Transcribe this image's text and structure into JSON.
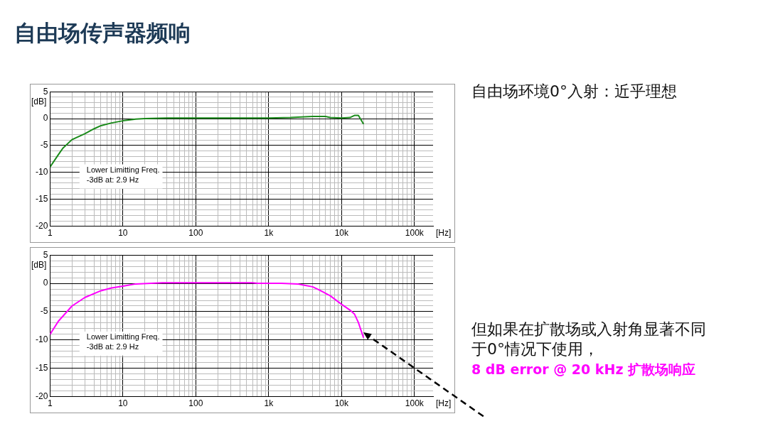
{
  "chart_data": [
    {
      "type": "line",
      "title": "自由场传声器频响",
      "xlabel": "[Hz]",
      "ylabel": "[dB]",
      "log": "x",
      "grid": true,
      "marker": "none",
      "line_style": "solid",
      "annotations": [
        "Lower Limitting Freq.\n-3dB at: 2.9 Hz",
        "自由场环境0°入射：近乎理想"
      ],
      "xlim": [
        1,
        180000
      ],
      "xticks": [
        1,
        {
          "value": 2,
          "label": null
        },
        {
          "value": 3,
          "label": null
        },
        {
          "value": 4,
          "label": null
        },
        {
          "value": 5,
          "label": null
        },
        {
          "value": 6,
          "label": null
        },
        {
          "value": 7,
          "label": null
        },
        {
          "value": 8,
          "label": null
        },
        {
          "value": 9,
          "label": null
        },
        10,
        {
          "value": 20,
          "label": null
        },
        {
          "value": 30,
          "label": null
        },
        {
          "value": 40,
          "label": null
        },
        {
          "value": 50,
          "label": null
        },
        {
          "value": 60,
          "label": null
        },
        {
          "value": 70,
          "label": null
        },
        {
          "value": 80,
          "label": null
        },
        {
          "value": 90,
          "label": null
        },
        100,
        {
          "value": 200,
          "label": null
        },
        {
          "value": 300,
          "label": null
        },
        {
          "value": 400,
          "label": null
        },
        {
          "value": 500,
          "label": null
        },
        {
          "value": 600,
          "label": null
        },
        {
          "value": 700,
          "label": null
        },
        {
          "value": 800,
          "label": null
        },
        {
          "value": 900,
          "label": null
        },
        {
          "value": 1000,
          "label": "1k"
        },
        {
          "value": 2000,
          "label": null
        },
        {
          "value": 3000,
          "label": null
        },
        {
          "value": 4000,
          "label": null
        },
        {
          "value": 5000,
          "label": null
        },
        {
          "value": 6000,
          "label": null
        },
        {
          "value": 7000,
          "label": null
        },
        {
          "value": 8000,
          "label": null
        },
        {
          "value": 9000,
          "label": null
        },
        {
          "value": 10000,
          "label": "10k"
        },
        {
          "value": 20000,
          "label": null
        },
        {
          "value": 30000,
          "label": null
        },
        {
          "value": 40000,
          "label": null
        },
        {
          "value": 50000,
          "label": null
        },
        {
          "value": 60000,
          "label": null
        },
        {
          "value": 70000,
          "label": null
        },
        {
          "value": 80000,
          "label": null
        },
        {
          "value": 90000,
          "label": null
        },
        {
          "value": 100000,
          "label": "100k"
        }
      ],
      "ylim": [
        -20,
        5
      ],
      "yticks": [
        -20,
        {
          "value": -19,
          "label": null
        },
        {
          "value": -18,
          "label": null
        },
        {
          "value": -17,
          "label": null
        },
        {
          "value": -16,
          "label": null
        },
        -15,
        {
          "value": -14,
          "label": null
        },
        {
          "value": -13,
          "label": null
        },
        {
          "value": -12,
          "label": null
        },
        {
          "value": -11,
          "label": null
        },
        -10,
        {
          "value": -9,
          "label": null
        },
        {
          "value": -8,
          "label": null
        },
        {
          "value": -7,
          "label": null
        },
        {
          "value": -6,
          "label": null
        },
        -5,
        {
          "value": -4,
          "label": null
        },
        {
          "value": -3,
          "label": null
        },
        {
          "value": -2,
          "label": null
        },
        {
          "value": -1,
          "label": null
        },
        0,
        {
          "value": 1,
          "label": null
        },
        {
          "value": 2,
          "label": null
        },
        {
          "value": 3,
          "label": null
        },
        {
          "value": 4,
          "label": null
        },
        5
      ],
      "x": [
        1,
        1.3,
        1.5,
        2,
        3,
        4,
        5,
        7,
        10,
        15,
        20,
        40,
        100,
        1000,
        2000,
        4000,
        6000,
        7000,
        10000,
        13000,
        15000,
        17000,
        20000
      ],
      "series": [
        {
          "color": "#1a8a1a",
          "values": [
            -9,
            -6.7,
            -5.5,
            -3.9,
            -2.8,
            -1.9,
            -1.3,
            -0.8,
            -0.4,
            -0.1,
            0,
            0.1,
            0.1,
            0.1,
            0.2,
            0.4,
            0.4,
            0.2,
            0.1,
            0.2,
            0.6,
            0.6,
            -1
          ]
        }
      ]
    },
    {
      "type": "line",
      "xlabel": "[Hz]",
      "ylabel": "[dB]",
      "log": "x",
      "grid": true,
      "marker": "none",
      "line_style": "solid",
      "annotations": [
        "Lower Limitting Freq.\n-3dB at: 2.9 Hz",
        "但如果在扩散场或入射角显著不同于0°情况下使用，",
        "8 dB error @ 20 kHz 扩散场响应"
      ],
      "xlim": [
        1,
        180000
      ],
      "xticks": [
        1,
        {
          "value": 2,
          "label": null
        },
        {
          "value": 3,
          "label": null
        },
        {
          "value": 4,
          "label": null
        },
        {
          "value": 5,
          "label": null
        },
        {
          "value": 6,
          "label": null
        },
        {
          "value": 7,
          "label": null
        },
        {
          "value": 8,
          "label": null
        },
        {
          "value": 9,
          "label": null
        },
        10,
        {
          "value": 20,
          "label": null
        },
        {
          "value": 30,
          "label": null
        },
        {
          "value": 40,
          "label": null
        },
        {
          "value": 50,
          "label": null
        },
        {
          "value": 60,
          "label": null
        },
        {
          "value": 70,
          "label": null
        },
        {
          "value": 80,
          "label": null
        },
        {
          "value": 90,
          "label": null
        },
        100,
        {
          "value": 200,
          "label": null
        },
        {
          "value": 300,
          "label": null
        },
        {
          "value": 400,
          "label": null
        },
        {
          "value": 500,
          "label": null
        },
        {
          "value": 600,
          "label": null
        },
        {
          "value": 700,
          "label": null
        },
        {
          "value": 800,
          "label": null
        },
        {
          "value": 900,
          "label": null
        },
        {
          "value": 1000,
          "label": "1k"
        },
        {
          "value": 2000,
          "label": null
        },
        {
          "value": 3000,
          "label": null
        },
        {
          "value": 4000,
          "label": null
        },
        {
          "value": 5000,
          "label": null
        },
        {
          "value": 6000,
          "label": null
        },
        {
          "value": 7000,
          "label": null
        },
        {
          "value": 8000,
          "label": null
        },
        {
          "value": 9000,
          "label": null
        },
        {
          "value": 10000,
          "label": "10k"
        },
        {
          "value": 20000,
          "label": null
        },
        {
          "value": 30000,
          "label": null
        },
        {
          "value": 40000,
          "label": null
        },
        {
          "value": 50000,
          "label": null
        },
        {
          "value": 60000,
          "label": null
        },
        {
          "value": 70000,
          "label": null
        },
        {
          "value": 80000,
          "label": null
        },
        {
          "value": 90000,
          "label": null
        },
        {
          "value": 100000,
          "label": "100k"
        }
      ],
      "ylim": [
        -20,
        5
      ],
      "yticks": [
        -20,
        {
          "value": -19,
          "label": null
        },
        {
          "value": -18,
          "label": null
        },
        {
          "value": -17,
          "label": null
        },
        {
          "value": -16,
          "label": null
        },
        -15,
        {
          "value": -14,
          "label": null
        },
        {
          "value": -13,
          "label": null
        },
        {
          "value": -12,
          "label": null
        },
        {
          "value": -11,
          "label": null
        },
        -10,
        {
          "value": -9,
          "label": null
        },
        {
          "value": -8,
          "label": null
        },
        {
          "value": -7,
          "label": null
        },
        {
          "value": -6,
          "label": null
        },
        -5,
        {
          "value": -4,
          "label": null
        },
        {
          "value": -3,
          "label": null
        },
        {
          "value": -2,
          "label": null
        },
        {
          "value": -1,
          "label": null
        },
        0,
        {
          "value": 1,
          "label": null
        },
        {
          "value": 2,
          "label": null
        },
        {
          "value": 3,
          "label": null
        },
        {
          "value": 4,
          "label": null
        },
        5
      ],
      "x": [
        1,
        1.3,
        2,
        3,
        5,
        7,
        10,
        15,
        35,
        600,
        700,
        1500,
        2500,
        3000,
        4000,
        5000,
        7000,
        10000,
        13000,
        15000,
        17000,
        20000
      ],
      "series": [
        {
          "color": "#ff00ff",
          "values": [
            -9,
            -6.7,
            -4,
            -2.5,
            -1.3,
            -0.8,
            -0.5,
            -0.1,
            0.1,
            0.1,
            0,
            0,
            -0.1,
            -0.3,
            -0.6,
            -1.2,
            -2.2,
            -3.7,
            -4.7,
            -5.4,
            -6.9,
            -9.6
          ]
        }
      ]
    }
  ]
}
